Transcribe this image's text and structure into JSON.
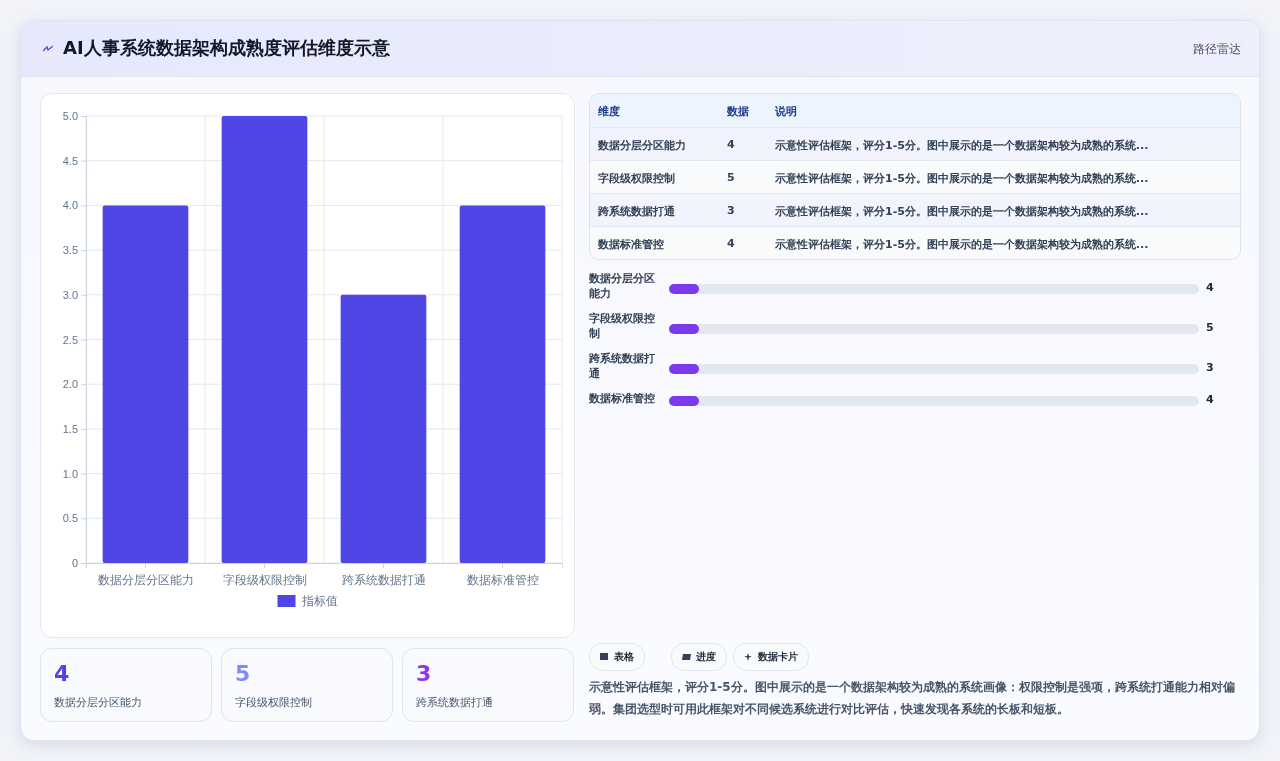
{
  "chart_data": {
    "type": "bar",
    "title": "AI人事系统数据架构成熟度评估维度示意",
    "categories": [
      "数据分层分区能力",
      "字段级权限控制",
      "跨系统数据打通",
      "数据标准管控"
    ],
    "series": [
      {
        "name": "指标值",
        "color": "#4f46e5",
        "values": [
          4,
          5,
          3,
          4
        ]
      }
    ],
    "ylim": [
      0,
      5
    ],
    "yticks": [
      {
        "value": 0,
        "label": "0"
      },
      {
        "value": 0.5,
        "label": "0.5"
      },
      {
        "value": 1,
        "label": "1.0"
      },
      {
        "value": 1.5,
        "label": "1.5"
      },
      {
        "value": 2,
        "label": "2.0"
      },
      {
        "value": 2.5,
        "label": "2.5"
      },
      {
        "value": 3,
        "label": "3.0"
      },
      {
        "value": 3.5,
        "label": "3.5"
      },
      {
        "value": 4,
        "label": "4.0"
      },
      {
        "value": 4.5,
        "label": "4.5"
      },
      {
        "value": 5,
        "label": "5.0"
      }
    ],
    "grid": true,
    "legend": "bottom",
    "annotations": [
      "路径雷达",
      "维度",
      "数据",
      "说明",
      "示意性评估框架，评分1-5分。图中展示的是一个数据架构较为成熟的系统...",
      "示意性评估框架，评分1-5分。图中展示的是一个数据架构较为成熟的系统...",
      "示意性评估框架，评分1-5分。图中展示的是一个数据架构较为成熟的系统...",
      "示意性评估框架，评分1-5分。图中展示的是一个数据架构较为成熟的系统...",
      "表格",
      "进度",
      "数据卡片",
      "示意性评估框架，评分1-5分。图中展示的是一个数据架构较为成熟的系统画像：权限控制是强项，跨系统打通能力相对偏弱。集团选型时可用此框架对不同候选系统进行对比评估，快速发现各系统的长板和短板。",
      "4",
      "5",
      "3",
      "4",
      "4",
      "5",
      "3",
      "4",
      "4",
      "5",
      "3"
    ]
  }
}
